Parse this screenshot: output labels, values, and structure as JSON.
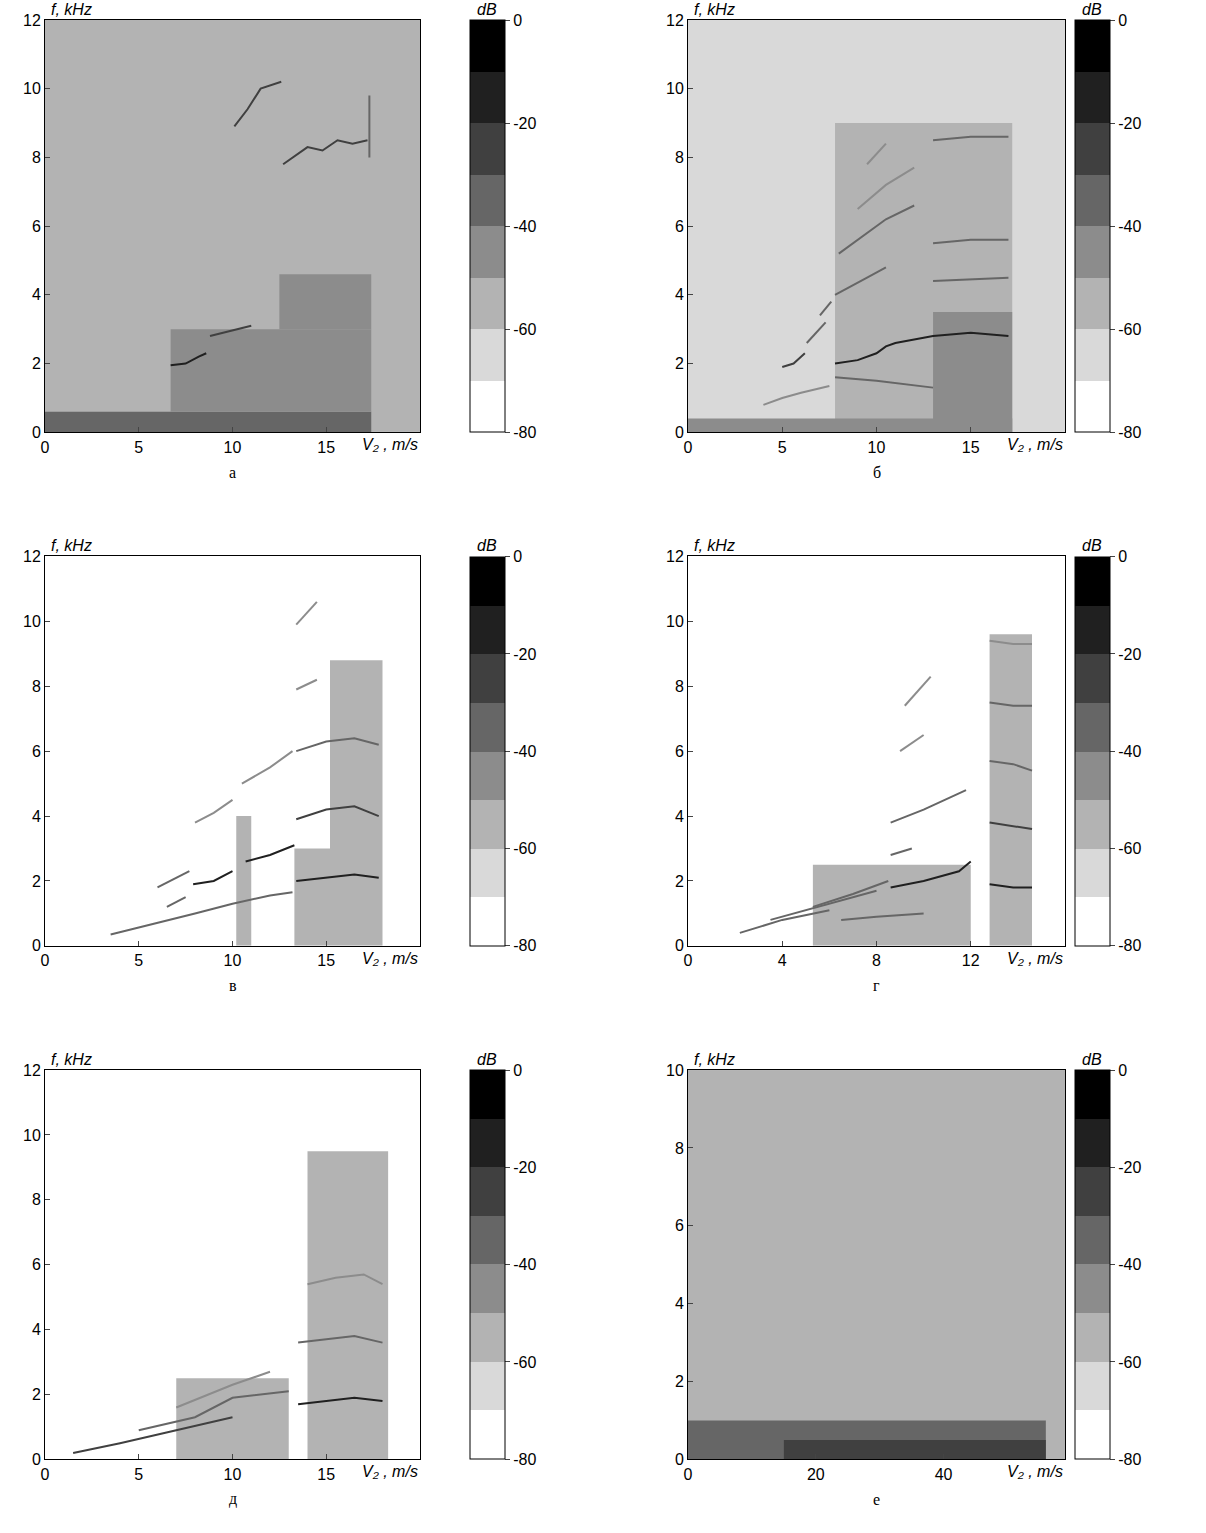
{
  "chart_data": [
    {
      "type": "heatmap",
      "label": "а",
      "x_label": "V₂ , m/s",
      "y_label": "f, kHz",
      "colorbar_title": "dB",
      "xlim": [
        0,
        20
      ],
      "ylim": [
        0,
        12
      ],
      "xticks": [
        0,
        5,
        10,
        15
      ],
      "yticks": [
        0,
        2,
        4,
        6,
        8,
        10,
        12
      ],
      "zlim": [
        -80,
        0
      ],
      "zticks": [
        -80,
        -60,
        -40,
        -20,
        0
      ],
      "background_db": -55,
      "regions": [
        {
          "x": [
            0,
            17.4
          ],
          "y": [
            0,
            0.6
          ],
          "db": -35
        },
        {
          "x": [
            6.7,
            17.4
          ],
          "y": [
            0.6,
            3
          ],
          "db": -45
        },
        {
          "x": [
            12.5,
            17.4
          ],
          "y": [
            3,
            4.6
          ],
          "db": -48
        }
      ],
      "lines": [
        {
          "x": [
            6.7,
            7.5,
            8.2,
            8.6
          ],
          "y": [
            1.95,
            2.0,
            2.2,
            2.3
          ],
          "db": -15
        },
        {
          "x": [
            8.8,
            9.5,
            10.2,
            11
          ],
          "y": [
            2.8,
            2.9,
            3.0,
            3.1
          ],
          "db": -25
        },
        {
          "x": [
            10.1,
            10.8,
            11.5,
            12.6
          ],
          "y": [
            8.9,
            9.4,
            10.0,
            10.2
          ],
          "db": -30
        },
        {
          "x": [
            12.7,
            13.2,
            14,
            14.8,
            15.6,
            16.4,
            17.2
          ],
          "y": [
            7.8,
            8.0,
            8.3,
            8.2,
            8.5,
            8.4,
            8.5
          ],
          "db": -30
        },
        {
          "x": [
            17.3,
            17.3
          ],
          "y": [
            8.0,
            9.8
          ],
          "db": -40
        }
      ]
    },
    {
      "type": "heatmap",
      "label": "б",
      "x_label": "V₂ , m/s",
      "y_label": "f, kHz",
      "colorbar_title": "dB",
      "xlim": [
        0,
        20
      ],
      "ylim": [
        0,
        12
      ],
      "xticks": [
        0,
        5,
        10,
        15
      ],
      "yticks": [
        0,
        2,
        4,
        6,
        8,
        10,
        12
      ],
      "zlim": [
        -80,
        0
      ],
      "zticks": [
        -80,
        -60,
        -40,
        -20,
        0
      ],
      "background_db": -70,
      "regions": [
        {
          "x": [
            7.8,
            17.2
          ],
          "y": [
            0,
            9
          ],
          "db": -55
        },
        {
          "x": [
            13,
            17.2
          ],
          "y": [
            0,
            3.5
          ],
          "db": -45
        },
        {
          "x": [
            0,
            17.2
          ],
          "y": [
            0,
            0.4
          ],
          "db": -45
        }
      ],
      "lines": [
        {
          "x": [
            4,
            5,
            6,
            7.5
          ],
          "y": [
            0.8,
            1.0,
            1.15,
            1.35
          ],
          "db": -45
        },
        {
          "x": [
            5,
            5.6,
            6.2
          ],
          "y": [
            1.9,
            2.0,
            2.3
          ],
          "db": -25
        },
        {
          "x": [
            6.3,
            6.8,
            7.3
          ],
          "y": [
            2.6,
            2.9,
            3.2
          ],
          "db": -35
        },
        {
          "x": [
            7.0,
            7.6
          ],
          "y": [
            3.4,
            3.8
          ],
          "db": -35
        },
        {
          "x": [
            7.8,
            9,
            10,
            10.5,
            11,
            12,
            13,
            15,
            17
          ],
          "y": [
            2.0,
            2.1,
            2.3,
            2.5,
            2.6,
            2.7,
            2.8,
            2.9,
            2.8
          ],
          "db": -15
        },
        {
          "x": [
            7.8,
            8.5,
            9.5,
            10.5
          ],
          "y": [
            4.0,
            4.2,
            4.5,
            4.8
          ],
          "db": -35
        },
        {
          "x": [
            8,
            9,
            10.5,
            12
          ],
          "y": [
            5.2,
            5.6,
            6.2,
            6.6
          ],
          "db": -40
        },
        {
          "x": [
            9,
            10.5,
            12
          ],
          "y": [
            6.5,
            7.2,
            7.7
          ],
          "db": -45
        },
        {
          "x": [
            9.5,
            10.5
          ],
          "y": [
            7.8,
            8.4
          ],
          "db": -50
        },
        {
          "x": [
            13,
            15,
            17
          ],
          "y": [
            5.5,
            5.6,
            5.6
          ],
          "db": -35
        },
        {
          "x": [
            13,
            15,
            17
          ],
          "y": [
            8.5,
            8.6,
            8.6
          ],
          "db": -35
        },
        {
          "x": [
            13,
            17
          ],
          "y": [
            4.4,
            4.5
          ],
          "db": -40
        },
        {
          "x": [
            7.8,
            10,
            13
          ],
          "y": [
            1.6,
            1.5,
            1.3
          ],
          "db": -40
        }
      ]
    },
    {
      "type": "heatmap",
      "label": "в",
      "x_label": "V₂ , m/s",
      "y_label": "f, kHz",
      "colorbar_title": "dB",
      "xlim": [
        0,
        20
      ],
      "ylim": [
        0,
        12
      ],
      "xticks": [
        0,
        5,
        10,
        15
      ],
      "yticks": [
        0,
        2,
        4,
        6,
        8,
        10,
        12
      ],
      "zlim": [
        -80,
        0
      ],
      "zticks": [
        -80,
        -60,
        -40,
        -20,
        0
      ],
      "background_db": -72,
      "regions": [
        {
          "x": [
            15.2,
            18
          ],
          "y": [
            0,
            8.8
          ],
          "db": -55
        },
        {
          "x": [
            13.3,
            15.2
          ],
          "y": [
            0,
            3
          ],
          "db": -55
        },
        {
          "x": [
            10.2,
            11
          ],
          "y": [
            0,
            4
          ],
          "db": -55
        }
      ],
      "lines": [
        {
          "x": [
            3.5,
            6,
            8,
            10,
            12,
            13.2
          ],
          "y": [
            0.35,
            0.7,
            1.0,
            1.3,
            1.55,
            1.65
          ],
          "db": -35
        },
        {
          "x": [
            6,
            7,
            7.7
          ],
          "y": [
            1.8,
            2.1,
            2.3
          ],
          "db": -40
        },
        {
          "x": [
            6.5,
            7.5
          ],
          "y": [
            1.2,
            1.5
          ],
          "db": -40
        },
        {
          "x": [
            7.9,
            9,
            10
          ],
          "y": [
            1.9,
            2.0,
            2.3
          ],
          "db": -20
        },
        {
          "x": [
            10.7,
            12,
            13.3
          ],
          "y": [
            2.6,
            2.8,
            3.1
          ],
          "db": -20
        },
        {
          "x": [
            8,
            9,
            10
          ],
          "y": [
            3.8,
            4.1,
            4.5
          ],
          "db": -45
        },
        {
          "x": [
            10.5,
            12,
            13.2
          ],
          "y": [
            5.0,
            5.5,
            6.0
          ],
          "db": -45
        },
        {
          "x": [
            13.4,
            15,
            16.5,
            17.8
          ],
          "y": [
            2.0,
            2.1,
            2.2,
            2.1
          ],
          "db": -15
        },
        {
          "x": [
            13.4,
            15,
            16.5,
            17.8
          ],
          "y": [
            3.9,
            4.2,
            4.3,
            4.0
          ],
          "db": -30
        },
        {
          "x": [
            13.4,
            15,
            16.5,
            17.8
          ],
          "y": [
            6.0,
            6.3,
            6.4,
            6.2
          ],
          "db": -40
        },
        {
          "x": [
            13.4,
            14.5
          ],
          "y": [
            7.9,
            8.2
          ],
          "db": -45
        },
        {
          "x": [
            13.4,
            14.5
          ],
          "y": [
            9.9,
            10.6
          ],
          "db": -50
        }
      ]
    },
    {
      "type": "heatmap",
      "label": "г",
      "x_label": "V₂ , m/s",
      "y_label": "f, kHz",
      "colorbar_title": "dB",
      "xlim": [
        0,
        16
      ],
      "ylim": [
        0,
        12
      ],
      "xticks": [
        0,
        4,
        8,
        12
      ],
      "yticks": [
        0,
        2,
        4,
        6,
        8,
        10,
        12
      ],
      "zlim": [
        -80,
        0
      ],
      "zticks": [
        -80,
        -60,
        -40,
        -20,
        0
      ],
      "background_db": -72,
      "regions": [
        {
          "x": [
            12.8,
            14.6
          ],
          "y": [
            0,
            9.6
          ],
          "db": -55
        },
        {
          "x": [
            5.3,
            12
          ],
          "y": [
            0,
            2.5
          ],
          "db": -60
        }
      ],
      "lines": [
        {
          "x": [
            2.2,
            4,
            6
          ],
          "y": [
            0.4,
            0.8,
            1.1
          ],
          "db": -35
        },
        {
          "x": [
            3.5,
            5.5,
            8
          ],
          "y": [
            0.8,
            1.2,
            1.7
          ],
          "db": -40
        },
        {
          "x": [
            5.3,
            7,
            8.5
          ],
          "y": [
            1.2,
            1.6,
            2.0
          ],
          "db": -40
        },
        {
          "x": [
            6.5,
            8,
            10
          ],
          "y": [
            0.8,
            0.9,
            1.0
          ],
          "db": -35
        },
        {
          "x": [
            8.6,
            10,
            11.5,
            12
          ],
          "y": [
            1.8,
            2.0,
            2.3,
            2.6
          ],
          "db": -20
        },
        {
          "x": [
            8.6,
            10,
            11.8
          ],
          "y": [
            3.8,
            4.2,
            4.8
          ],
          "db": -35
        },
        {
          "x": [
            8.6,
            9.5
          ],
          "y": [
            2.8,
            3.0
          ],
          "db": -40
        },
        {
          "x": [
            9,
            10
          ],
          "y": [
            6.0,
            6.5
          ],
          "db": -45
        },
        {
          "x": [
            9.2,
            10.3
          ],
          "y": [
            7.4,
            8.3
          ],
          "db": -50
        },
        {
          "x": [
            12.8,
            13.8,
            14.6
          ],
          "y": [
            1.9,
            1.8,
            1.8
          ],
          "db": -15
        },
        {
          "x": [
            12.8,
            13.8,
            14.6
          ],
          "y": [
            3.8,
            3.7,
            3.6
          ],
          "db": -25
        },
        {
          "x": [
            12.8,
            13.8,
            14.6
          ],
          "y": [
            5.7,
            5.6,
            5.4
          ],
          "db": -35
        },
        {
          "x": [
            12.8,
            13.8,
            14.6
          ],
          "y": [
            7.5,
            7.4,
            7.4
          ],
          "db": -40
        },
        {
          "x": [
            12.8,
            13.8,
            14.6
          ],
          "y": [
            9.4,
            9.3,
            9.3
          ],
          "db": -45
        }
      ]
    },
    {
      "type": "heatmap",
      "label": "д",
      "x_label": "V₂ , m/s",
      "y_label": "f, kHz",
      "colorbar_title": "dB",
      "xlim": [
        0,
        20
      ],
      "ylim": [
        0,
        12
      ],
      "xticks": [
        0,
        5,
        10,
        15
      ],
      "yticks": [
        0,
        2,
        4,
        6,
        8,
        10,
        12
      ],
      "zlim": [
        -80,
        0
      ],
      "zticks": [
        -80,
        -60,
        -40,
        -20,
        0
      ],
      "background_db": -72,
      "regions": [
        {
          "x": [
            14,
            18.3
          ],
          "y": [
            0,
            9.5
          ],
          "db": -55
        },
        {
          "x": [
            7,
            13
          ],
          "y": [
            0,
            2.5
          ],
          "db": -60
        }
      ],
      "lines": [
        {
          "x": [
            1.5,
            4,
            7,
            10
          ],
          "y": [
            0.2,
            0.5,
            0.9,
            1.3
          ],
          "db": -30
        },
        {
          "x": [
            5,
            8,
            10,
            13
          ],
          "y": [
            0.9,
            1.3,
            1.9,
            2.1
          ],
          "db": -35
        },
        {
          "x": [
            7,
            10,
            12
          ],
          "y": [
            1.6,
            2.3,
            2.7
          ],
          "db": -50
        },
        {
          "x": [
            13.5,
            15,
            16.5,
            18
          ],
          "y": [
            1.7,
            1.8,
            1.9,
            1.8
          ],
          "db": -20
        },
        {
          "x": [
            13.5,
            15,
            16.5,
            18
          ],
          "y": [
            3.6,
            3.7,
            3.8,
            3.6
          ],
          "db": -40
        },
        {
          "x": [
            14,
            15.5,
            17,
            18
          ],
          "y": [
            5.4,
            5.6,
            5.7,
            5.4
          ],
          "db": -45
        }
      ]
    },
    {
      "type": "heatmap",
      "label": "е",
      "x_label": "V₂ , m/s",
      "y_label": "f, kHz",
      "colorbar_title": "dB",
      "xlim": [
        0,
        59
      ],
      "ylim": [
        0,
        10
      ],
      "xticks": [
        0,
        20,
        40
      ],
      "yticks": [
        0,
        2,
        4,
        6,
        8,
        10
      ],
      "zlim": [
        -80,
        0
      ],
      "zticks": [
        -80,
        -60,
        -40,
        -20,
        0
      ],
      "background_db": -60,
      "regions": [
        {
          "x": [
            0,
            56
          ],
          "y": [
            0,
            1
          ],
          "db": -40
        },
        {
          "x": [
            15,
            56
          ],
          "y": [
            0,
            0.5
          ],
          "db": -30
        }
      ],
      "lines": []
    }
  ]
}
